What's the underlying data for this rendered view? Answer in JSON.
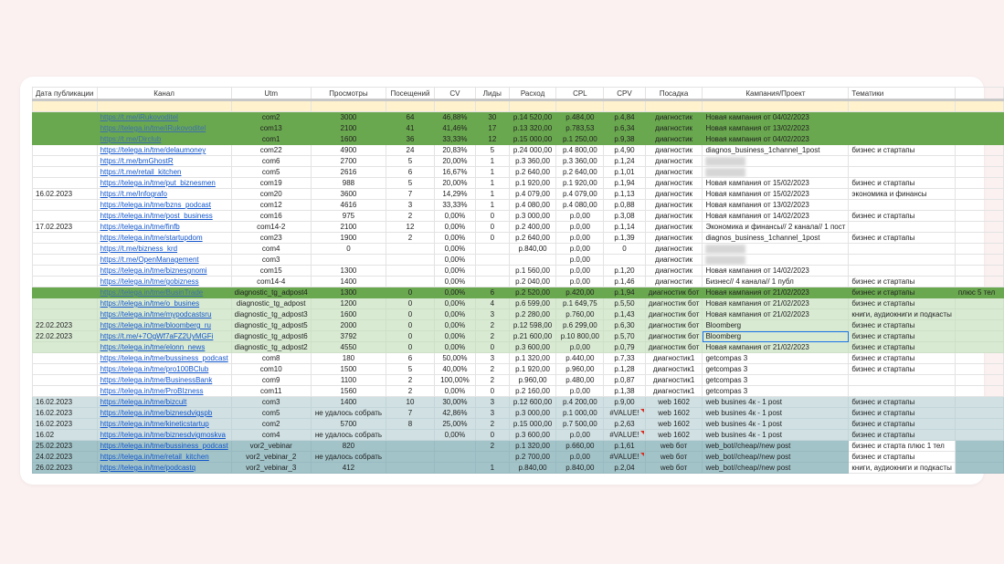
{
  "headers": [
    "Дата публикации",
    "Канал",
    "Utm",
    "Просмотры",
    "Посещений",
    "CV",
    "Лиды",
    "Расход",
    "CPL",
    "CPV",
    "Посадка",
    "Кампания/Проект",
    "Тематики",
    ""
  ],
  "colors": {
    "dark_green": "#6aa84f",
    "light_green": "#d9ead3",
    "light_blue": "#d0e0e3",
    "teal": "#a2c4c9",
    "yellow": "#fff2cc",
    "link": "#1155cc"
  },
  "rows": [
    {
      "style": "dg",
      "cells": [
        "",
        "https://t.me/iRukovoditel",
        "com2",
        "3000",
        "64",
        "46,88%",
        "30",
        "р.14 520,00",
        "р.484,00",
        "р.4,84",
        "диагностик",
        "Новая кампания от 04/02/2023",
        "",
        ""
      ]
    },
    {
      "style": "dg",
      "cells": [
        "",
        "https://telega.in/tme/iRukovoditel",
        "com13",
        "2100",
        "41",
        "41,46%",
        "17",
        "р.13 320,00",
        "р.783,53",
        "р.6,34",
        "диагностик",
        "Новая кампания от 13/02/2023",
        "",
        ""
      ]
    },
    {
      "style": "dg",
      "cells": [
        "",
        "https://t.me/Dirclub",
        "com1",
        "1600",
        "36",
        "33,33%",
        "12",
        "р.15 000,00",
        "р.1 250,00",
        "р.9,38",
        "диагностик",
        "Новая кампания от 04/02/2023",
        "",
        ""
      ]
    },
    {
      "style": "w",
      "cells": [
        "",
        "https://telega.in/tme/delaumoney",
        "com22",
        "4900",
        "24",
        "20,83%",
        "5",
        "р.24 000,00",
        "р.4 800,00",
        "р.4,90",
        "диагностик",
        "diagnos_business_1channel_1post",
        "бизнес и стартапы",
        ""
      ]
    },
    {
      "style": "w",
      "cells": [
        "",
        "https://t.me/bmGhostR",
        "com6",
        "2700",
        "5",
        "20,00%",
        "1",
        "р.3 360,00",
        "р.3 360,00",
        "р.1,24",
        "диагностик",
        "#blur",
        "",
        ""
      ]
    },
    {
      "style": "w",
      "cells": [
        "",
        "https://t.me/retail_kitchen",
        "com5",
        "2616",
        "6",
        "16,67%",
        "1",
        "р.2 640,00",
        "р.2 640,00",
        "р.1,01",
        "диагностик",
        "#blur",
        "",
        ""
      ]
    },
    {
      "style": "w",
      "cells": [
        "",
        "https://telega.in/tme/put_biznesmen",
        "com19",
        "988",
        "5",
        "20,00%",
        "1",
        "р.1 920,00",
        "р.1 920,00",
        "р.1,94",
        "диагностик",
        "Новая кампания от 15/02/2023",
        "бизнес и стартапы",
        ""
      ]
    },
    {
      "style": "w",
      "cells": [
        "16.02.2023",
        "https://t.me/Infografo",
        "com20",
        "3600",
        "7",
        "14,29%",
        "1",
        "р.4 079,00",
        "р.4 079,00",
        "р.1,13",
        "диагностик",
        "Новая кампания от 15/02/2023",
        "экономика и финансы",
        ""
      ]
    },
    {
      "style": "w",
      "cells": [
        "",
        "https://telega.in/tme/bzns_podcast",
        "com12",
        "4616",
        "3",
        "33,33%",
        "1",
        "р.4 080,00",
        "р.4 080,00",
        "р.0,88",
        "диагностик",
        "Новая кампания от 13/02/2023",
        "",
        ""
      ]
    },
    {
      "style": "w",
      "cells": [
        "",
        "https://telega.in/tme/post_business",
        "com16",
        "975",
        "2",
        "0,00%",
        "0",
        "р.3 000,00",
        "р.0,00",
        "р.3,08",
        "диагностик",
        "Новая кампания от 14/02/2023",
        "бизнес и стартапы",
        ""
      ]
    },
    {
      "style": "w",
      "cells": [
        "17.02.2023",
        "https://telega.in/tme/finfb",
        "com14-2",
        "2100",
        "12",
        "0,00%",
        "0",
        "р.2 400,00",
        "р.0,00",
        "р.1,14",
        "диагностик",
        "Экономика и финансы// 2 канала// 1 пост",
        "",
        ""
      ]
    },
    {
      "style": "w",
      "cells": [
        "",
        "https://telega.in/tme/startupdom",
        "com23",
        "1900",
        "2",
        "0,00%",
        "0",
        "р.2 640,00",
        "р.0,00",
        "р.1,39",
        "диагностик",
        "diagnos_business_1channel_1post",
        "бизнес и стартапы",
        ""
      ]
    },
    {
      "style": "w",
      "cells": [
        "",
        "https://t.me/bizness_krd",
        "com4",
        "0",
        "",
        "0,00%",
        "",
        "р.840,00",
        "р.0,00",
        "0",
        "диагностик",
        "#blur",
        "",
        ""
      ]
    },
    {
      "style": "w",
      "cells": [
        "",
        "https://t.me/OpenManagement",
        "com3",
        "",
        "",
        "0,00%",
        "",
        "",
        "р.0,00",
        "",
        "диагностик",
        "#blur",
        "",
        ""
      ]
    },
    {
      "style": "w",
      "cells": [
        "",
        "https://telega.in/tme/biznesgnomi",
        "com15",
        "1300",
        "",
        "0,00%",
        "",
        "р.1 560,00",
        "р.0,00",
        "р.1,20",
        "диагностик",
        "Новая кампания от 14/02/2023",
        "",
        ""
      ]
    },
    {
      "style": "w",
      "cells": [
        "",
        "https://telega.in/tme/gobizness",
        "com14-4",
        "1400",
        "",
        "0,00%",
        "",
        "р.2 040,00",
        "р.0,00",
        "р.1,46",
        "диагностик",
        "Бизнес// 4 канала// 1 публ",
        "бизнес и стартапы",
        ""
      ]
    },
    {
      "style": "dg",
      "cells": [
        "",
        "https://telega.in/tme/BusinTrade",
        "diagnostic_tg_adpost4",
        "1300",
        "0",
        "0,00%",
        "6",
        "р.2 520,00",
        "р.420,00",
        "р.1,94",
        "диагностик бот",
        "Новая кампания от 21/02/2023",
        "бизнес и стартапы",
        "плюс 5 тел"
      ]
    },
    {
      "style": "lg",
      "cells": [
        "",
        "https://telega.in/tme/o_busines",
        "diagnostic_tg_adpost",
        "1200",
        "0",
        "0,00%",
        "4",
        "р.6 599,00",
        "р.1 649,75",
        "р.5,50",
        "диагностик бот",
        "Новая кампания от 21/02/2023",
        "бизнес и стартапы",
        ""
      ]
    },
    {
      "style": "lg",
      "cells": [
        "",
        "https://telega.in/tme/mypodcastsru",
        "diagnostic_tg_adpost3",
        "1600",
        "0",
        "0,00%",
        "3",
        "р.2 280,00",
        "р.760,00",
        "р.1,43",
        "диагностик бот",
        "Новая кампания от 21/02/2023",
        "книги, аудиокниги и подкасты",
        ""
      ]
    },
    {
      "style": "lg",
      "cells": [
        "22.02.2023",
        "https://telega.in/tme/bloomberg_ru",
        "diagnostic_tg_adpost5",
        "2000",
        "0",
        "0,00%",
        "2",
        "р.12 598,00",
        "р.6 299,00",
        "р.6,30",
        "диагностик бот",
        "Bloomberg",
        "бизнес и стартапы",
        ""
      ]
    },
    {
      "style": "lg",
      "cells": [
        "22.02.2023",
        "https://t.me/+7OgWf7aFZ2UyMGFi",
        "diagnostic_tg_adpost6",
        "3792",
        "0",
        "0,00%",
        "2",
        "р.21 600,00",
        "р.10 800,00",
        "р.5,70",
        "диагностик бот",
        "Bloomberg",
        "бизнес и стартапы",
        ""
      ]
    },
    {
      "style": "lg",
      "cells": [
        "",
        "https://telega.in/tme/elonn_news",
        "diagnostic_tg_adpost2",
        "4550",
        "0",
        "0,00%",
        "0",
        "р.3 600,00",
        "р.0,00",
        "р.0,79",
        "диагностик бот",
        "Новая кампания от 21/02/2023",
        "бизнес и стартапы",
        ""
      ]
    },
    {
      "style": "w",
      "cells": [
        "",
        "https://telega.in/tme/bussiness_podcast",
        "com8",
        "180",
        "6",
        "50,00%",
        "3",
        "р.1 320,00",
        "р.440,00",
        "р.7,33",
        "диагностик1",
        "getcompas 3",
        "бизнес и стартапы",
        ""
      ]
    },
    {
      "style": "w",
      "cells": [
        "",
        "https://telega.in/tme/pro100BClub",
        "com10",
        "1500",
        "5",
        "40,00%",
        "2",
        "р.1 920,00",
        "р.960,00",
        "р.1,28",
        "диагностик1",
        "getcompas 3",
        "бизнес и стартапы",
        ""
      ]
    },
    {
      "style": "w",
      "cells": [
        "",
        "https://telega.in/tme/BusinessBank",
        "com9",
        "1100",
        "2",
        "100,00%",
        "2",
        "р.960,00",
        "р.480,00",
        "р.0,87",
        "диагностик1",
        "getcompas 3",
        "",
        ""
      ]
    },
    {
      "style": "w",
      "cells": [
        "",
        "https://telega.in/tme/ProBIzness",
        "com11",
        "1560",
        "2",
        "0,00%",
        "0",
        "р.2 160,00",
        "р.0,00",
        "р.1,38",
        "диагностик1",
        "getcompas 3",
        "",
        ""
      ]
    },
    {
      "style": "b1",
      "cells": [
        "16.02.2023",
        "https://telega.in/tme/bizcult",
        "com3",
        "1400",
        "10",
        "30,00%",
        "3",
        "р.12 600,00",
        "р.4 200,00",
        "р.9,00",
        "web 1602",
        "web busines 4к - 1 post",
        "бизнес и стартапы",
        ""
      ]
    },
    {
      "style": "b1",
      "cells": [
        "16.02.2023",
        "https://telega.in/tme/biznesdvigspb",
        "com5",
        "не удалось собрать",
        "7",
        "42,86%",
        "3",
        "р.3 000,00",
        "р.1 000,00",
        "#VALUE!",
        "web 1602",
        "web busines 4к - 1 post",
        "бизнес и стартапы",
        ""
      ]
    },
    {
      "style": "b1",
      "cells": [
        "16.02.2023",
        "https://telega.in/tme/kineticstartup",
        "com2",
        "5700",
        "8",
        "25,00%",
        "2",
        "р.15 000,00",
        "р.7 500,00",
        "р.2,63",
        "web 1602",
        "web busines 4к - 1 post",
        "бизнес и стартапы",
        ""
      ]
    },
    {
      "style": "b1",
      "cells": [
        "16.02",
        "https://telega.in/tme/biznesdvigmoskva",
        "com4",
        "не удалось собрать",
        "",
        "0,00%",
        "0",
        "р.3 600,00",
        "р.0,00",
        "#VALUE!",
        "web 1602",
        "web busines 4к - 1 post",
        "бизнес и стартапы",
        ""
      ]
    },
    {
      "style": "b2",
      "cells": [
        "25.02.2023",
        "https://telega.in/tme/bussiness_podcast",
        "vor2_vebinar",
        "820",
        "",
        "",
        "2",
        "р.1 320,00",
        "р.660,00",
        "р.1,61",
        "web бот",
        "web_bot//cheap//new post",
        "бизнес и старта плюс 1 тел",
        ""
      ]
    },
    {
      "style": "b2",
      "cells": [
        "24.02.2023",
        "https://telega.in/tme/retail_kitchen",
        "vor2_vebinar_2",
        "не удалось собрать",
        "",
        "",
        "",
        "р.2 700,00",
        "р.0,00",
        "#VALUE!",
        "web бот",
        "web_bot//cheap//new post",
        "бизнес и стартапы",
        ""
      ]
    },
    {
      "style": "b2",
      "cells": [
        "26.02.2023",
        "https://telega.in/tme/podcastq",
        "vor2_vebinar_3",
        "412",
        "",
        "",
        "1",
        "р.840,00",
        "р.840,00",
        "р.2,04",
        "web бот",
        "web_bot//cheap//new post",
        "книги, аудиокниги и подкасты",
        ""
      ]
    }
  ]
}
